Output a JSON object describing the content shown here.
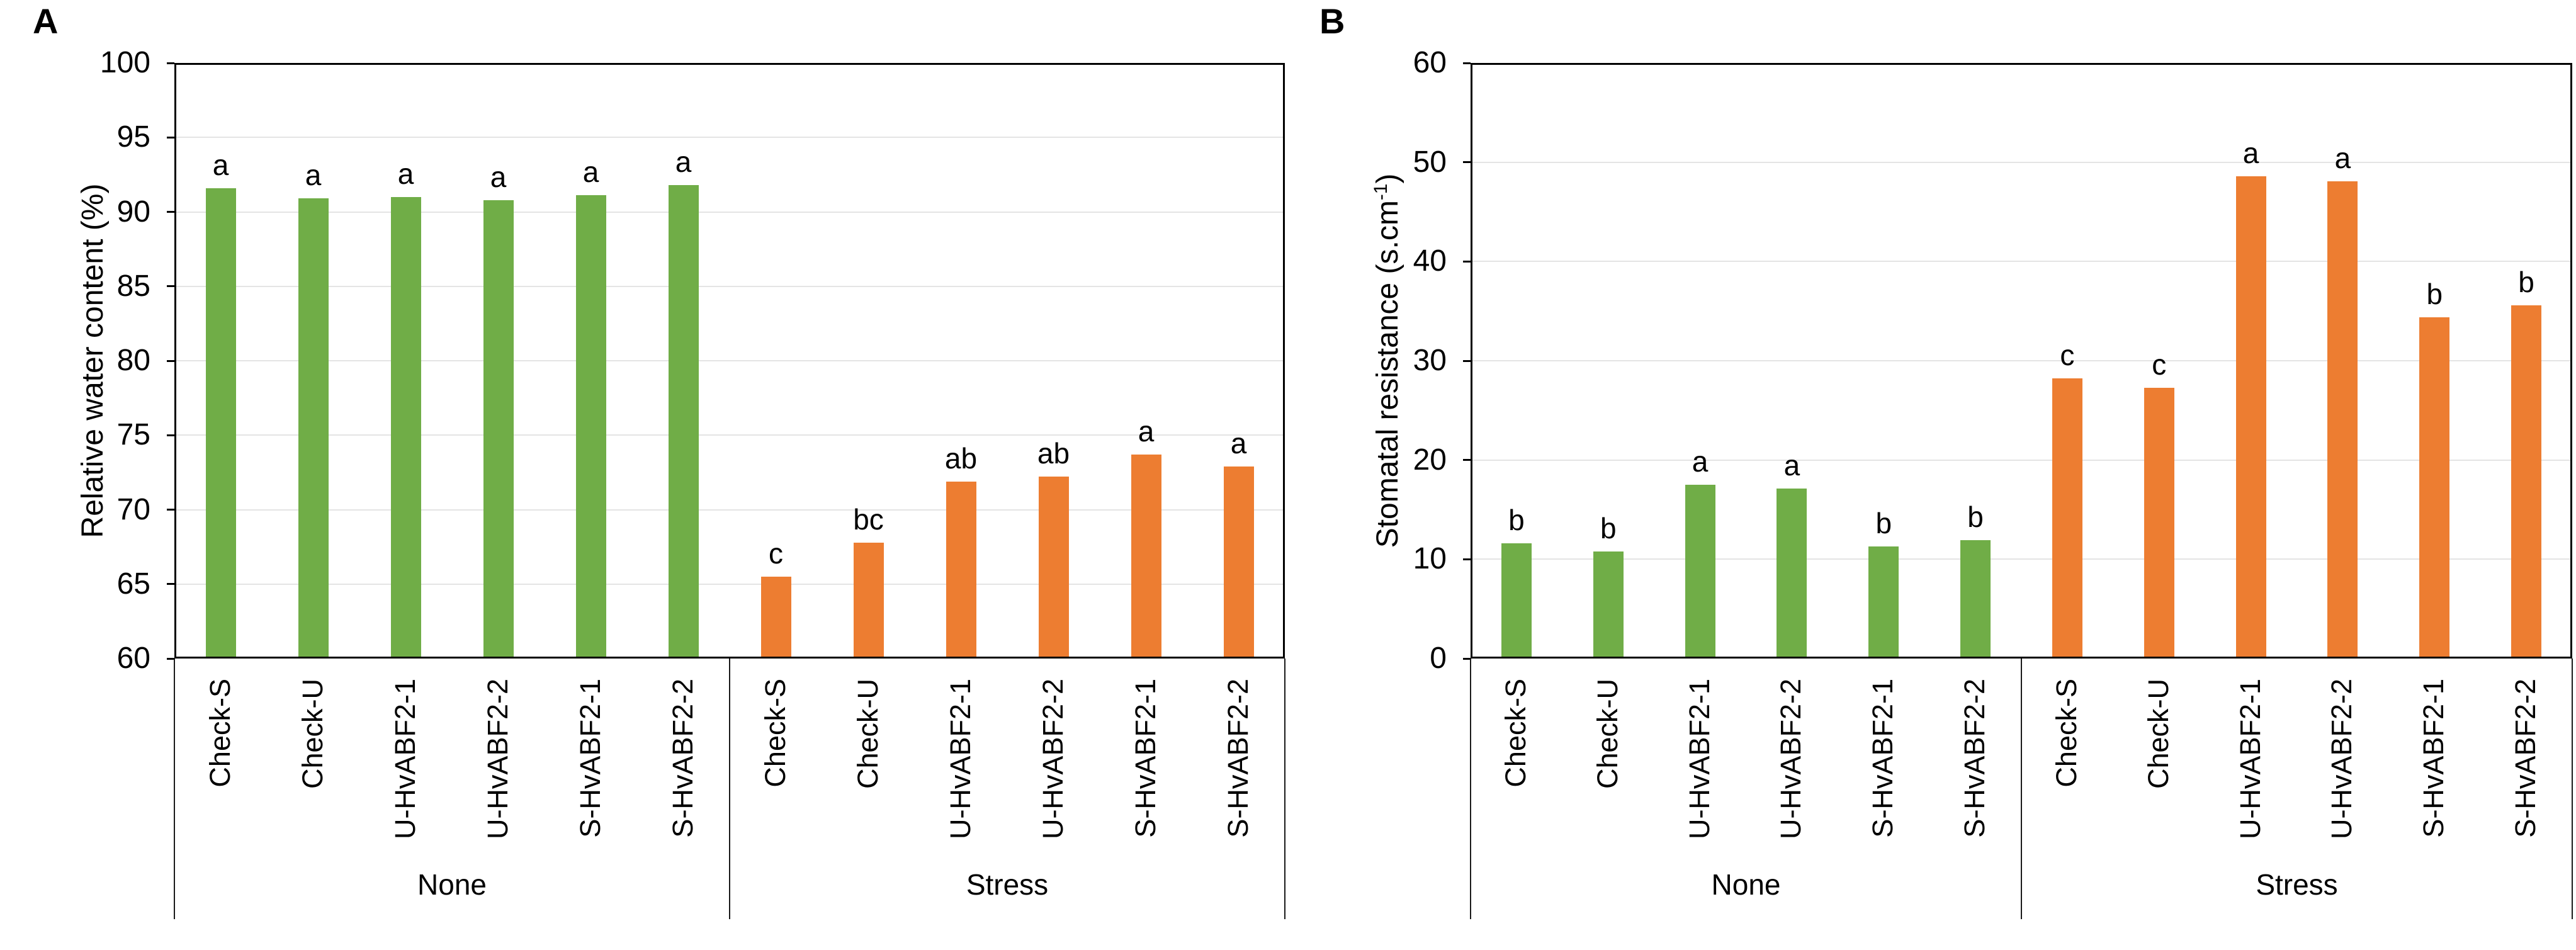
{
  "figure": {
    "background": "#FFFFFF"
  },
  "colors": {
    "none_group": "#70AD47",
    "stress_group": "#ED7D31",
    "gridline": "#E4E4E4",
    "axis": "#000000",
    "text": "#000000"
  },
  "chart_data": [
    {
      "type": "bar",
      "panel_label": "A",
      "ylabel": "Relative water content (%)",
      "ylabel_parts": [
        {
          "text": "Relative water content (%)"
        }
      ],
      "ylim": [
        60,
        100
      ],
      "ytick_step": 5,
      "y_ticks": [
        "100",
        "95",
        "90",
        "85",
        "80",
        "75",
        "70",
        "65",
        "60"
      ],
      "grid": "horizontal",
      "legend": "none",
      "categories": [
        "Check-S",
        "Check-U",
        "U-HvABF2-1",
        "U-HvABF2-2",
        "S-HvABF2-1",
        "S-HvABF2-2"
      ],
      "group_labels": [
        "None",
        "Stress"
      ],
      "series": [
        {
          "name": "None",
          "color": "#70AD47",
          "values": [
            91.6,
            90.9,
            91.0,
            90.8,
            91.1,
            91.8
          ],
          "sig_letters": [
            "a",
            "a",
            "a",
            "a",
            "a",
            "a"
          ]
        },
        {
          "name": "Stress",
          "color": "#ED7D31",
          "values": [
            65.5,
            67.8,
            71.9,
            72.2,
            73.7,
            72.9
          ],
          "sig_letters": [
            "c",
            "bc",
            "ab",
            "ab",
            "a",
            "a"
          ]
        }
      ]
    },
    {
      "type": "bar",
      "panel_label": "B",
      "ylabel": "Stomatal resistance (s.cm-1)",
      "ylabel_parts": [
        {
          "text": "Stomatal resistance (s.cm"
        },
        {
          "text": "-1",
          "sup": true
        },
        {
          "text": ")"
        }
      ],
      "ylim": [
        0,
        60
      ],
      "ytick_step": 10,
      "y_ticks": [
        "60",
        "50",
        "40",
        "30",
        "20",
        "10",
        "0"
      ],
      "grid": "horizontal",
      "legend": "none",
      "categories": [
        "Check-S",
        "Check-U",
        "U-HvABF2-1",
        "U-HvABF2-2",
        "S-HvABF2-1",
        "S-HvABF2-2"
      ],
      "group_labels": [
        "None",
        "Stress"
      ],
      "series": [
        {
          "name": "None",
          "color": "#70AD47",
          "values": [
            11.6,
            10.8,
            17.5,
            17.1,
            11.3,
            11.9
          ],
          "sig_letters": [
            "b",
            "b",
            "a",
            "a",
            "b",
            "b"
          ]
        },
        {
          "name": "Stress",
          "color": "#ED7D31",
          "values": [
            28.2,
            27.3,
            48.6,
            48.1,
            34.4,
            35.6
          ],
          "sig_letters": [
            "c",
            "c",
            "a",
            "a",
            "b",
            "b"
          ]
        }
      ]
    }
  ]
}
